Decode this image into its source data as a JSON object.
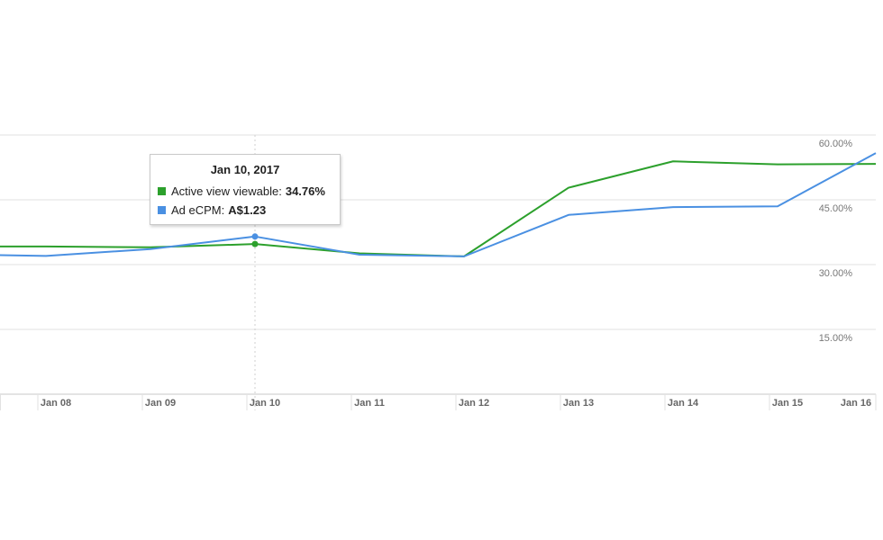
{
  "tooltip": {
    "title": "Jan 10, 2017",
    "rows": [
      {
        "name": "Active view viewable",
        "value": "34.76%",
        "color": "#2ca02c"
      },
      {
        "name": "Ad eCPM",
        "value": "A$1.23",
        "color": "#4a90e2"
      }
    ]
  },
  "chart_data": {
    "type": "line",
    "xlabel": "",
    "ylabel": "",
    "x": [
      "Jan 08",
      "Jan 09",
      "Jan 10",
      "Jan 11",
      "Jan 12",
      "Jan 13",
      "Jan 14",
      "Jan 15",
      "Jan 16"
    ],
    "y_ticks": [
      "15.00%",
      "30.00%",
      "45.00%",
      "60.00%"
    ],
    "ylim": [
      0,
      60
    ],
    "grid": true,
    "highlighted_x": "Jan 10",
    "series": [
      {
        "name": "Active view viewable",
        "color": "#2ca02c",
        "values": [
          34.2,
          34.0,
          34.76,
          32.6,
          31.9,
          47.8,
          53.9,
          53.2,
          53.3
        ]
      },
      {
        "name": "Ad eCPM",
        "color": "#4a90e2",
        "values": [
          32.0,
          33.6,
          36.5,
          32.3,
          31.9,
          41.5,
          43.3,
          43.5,
          55.8
        ]
      }
    ]
  }
}
